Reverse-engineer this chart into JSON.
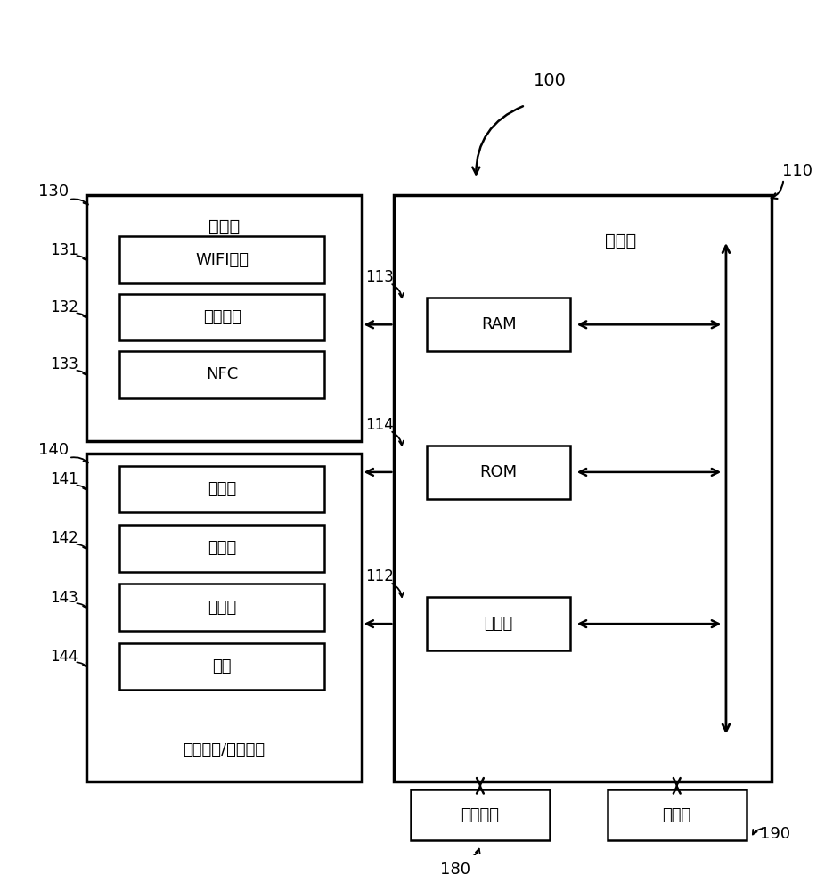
{
  "bg_color": "#ffffff",
  "line_color": "#000000",
  "title_num": "100",
  "controller_label": "控制器",
  "controller_num": "110",
  "comm_label": "通信器",
  "comm_num": "130",
  "user_io_label": "用户输入/输出接口",
  "user_io_num": "140",
  "wifi_label": "WIFI模块",
  "wifi_num": "131",
  "bt_label": "蓝牙模块",
  "bt_num": "132",
  "nfc_label": "NFC",
  "nfc_num": "133",
  "mic_label": "麦克风",
  "mic_num": "141",
  "touch_label": "触摸板",
  "touch_num": "142",
  "sensor_label": "传感器",
  "sensor_num": "143",
  "key_label": "按键",
  "key_num": "144",
  "ram_label": "RAM",
  "ram_num": "113",
  "rom_label": "ROM",
  "rom_num": "114",
  "proc_label": "处理器",
  "proc_num": "112",
  "power_label": "供电电源",
  "power_num": "180",
  "storage_label": "存储器",
  "storage_num": "190",
  "fig_w": 9.35,
  "fig_h": 10.0,
  "dpi": 100
}
